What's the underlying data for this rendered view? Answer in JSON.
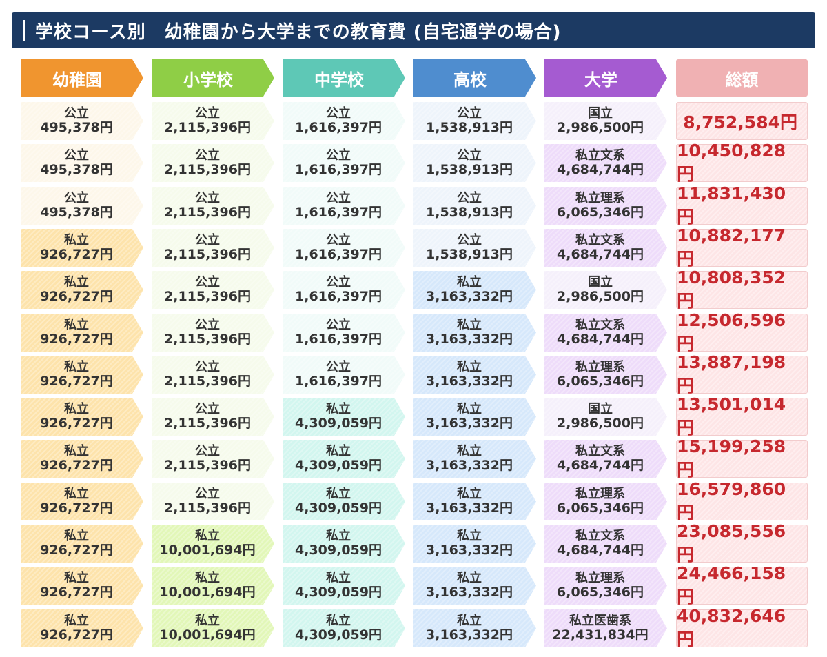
{
  "title": "学校コース別　幼稚園から大学までの教育費 (自宅通学の場合)",
  "headers": [
    "幼稚園",
    "小学校",
    "中学校",
    "高校",
    "大学",
    "総額"
  ],
  "colors": {
    "title_bg": "#1c3a63",
    "header": [
      "#f0952f",
      "#8fce46",
      "#5ec8b6",
      "#4f8dcf",
      "#a55bd1",
      "#f0b1b3"
    ],
    "public": [
      "#fdf7ea",
      "#f6fbec",
      "#f1fbf9",
      "#eef4fb",
      "#f5f0fb"
    ],
    "private": [
      "#fde3ab",
      "#e2f7b8",
      "#d2f6ef",
      "#d6e8fb",
      "#eedcfa"
    ],
    "total_text": "#c6282e"
  },
  "rows": [
    {
      "cells": [
        {
          "type": "公立",
          "amount": "495,378円",
          "private": false
        },
        {
          "type": "公立",
          "amount": "2,115,396円",
          "private": false
        },
        {
          "type": "公立",
          "amount": "1,616,397円",
          "private": false
        },
        {
          "type": "公立",
          "amount": "1,538,913円",
          "private": false
        },
        {
          "type": "国立",
          "amount": "2,986,500円",
          "private": false
        }
      ],
      "total": "8,752,584円"
    },
    {
      "cells": [
        {
          "type": "公立",
          "amount": "495,378円",
          "private": false
        },
        {
          "type": "公立",
          "amount": "2,115,396円",
          "private": false
        },
        {
          "type": "公立",
          "amount": "1,616,397円",
          "private": false
        },
        {
          "type": "公立",
          "amount": "1,538,913円",
          "private": false
        },
        {
          "type": "私立文系",
          "amount": "4,684,744円",
          "private": true
        }
      ],
      "total": "10,450,828円"
    },
    {
      "cells": [
        {
          "type": "公立",
          "amount": "495,378円",
          "private": false
        },
        {
          "type": "公立",
          "amount": "2,115,396円",
          "private": false
        },
        {
          "type": "公立",
          "amount": "1,616,397円",
          "private": false
        },
        {
          "type": "公立",
          "amount": "1,538,913円",
          "private": false
        },
        {
          "type": "私立理系",
          "amount": "6,065,346円",
          "private": true
        }
      ],
      "total": "11,831,430円"
    },
    {
      "cells": [
        {
          "type": "私立",
          "amount": "926,727円",
          "private": true
        },
        {
          "type": "公立",
          "amount": "2,115,396円",
          "private": false
        },
        {
          "type": "公立",
          "amount": "1,616,397円",
          "private": false
        },
        {
          "type": "公立",
          "amount": "1,538,913円",
          "private": false
        },
        {
          "type": "私立文系",
          "amount": "4,684,744円",
          "private": true
        }
      ],
      "total": "10,882,177円"
    },
    {
      "cells": [
        {
          "type": "私立",
          "amount": "926,727円",
          "private": true
        },
        {
          "type": "公立",
          "amount": "2,115,396円",
          "private": false
        },
        {
          "type": "公立",
          "amount": "1,616,397円",
          "private": false
        },
        {
          "type": "私立",
          "amount": "3,163,332円",
          "private": true
        },
        {
          "type": "国立",
          "amount": "2,986,500円",
          "private": false
        }
      ],
      "total": "10,808,352円"
    },
    {
      "cells": [
        {
          "type": "私立",
          "amount": "926,727円",
          "private": true
        },
        {
          "type": "公立",
          "amount": "2,115,396円",
          "private": false
        },
        {
          "type": "公立",
          "amount": "1,616,397円",
          "private": false
        },
        {
          "type": "私立",
          "amount": "3,163,332円",
          "private": true
        },
        {
          "type": "私立文系",
          "amount": "4,684,744円",
          "private": true
        }
      ],
      "total": "12,506,596円"
    },
    {
      "cells": [
        {
          "type": "私立",
          "amount": "926,727円",
          "private": true
        },
        {
          "type": "公立",
          "amount": "2,115,396円",
          "private": false
        },
        {
          "type": "公立",
          "amount": "1,616,397円",
          "private": false
        },
        {
          "type": "私立",
          "amount": "3,163,332円",
          "private": true
        },
        {
          "type": "私立理系",
          "amount": "6,065,346円",
          "private": true
        }
      ],
      "total": "13,887,198円"
    },
    {
      "cells": [
        {
          "type": "私立",
          "amount": "926,727円",
          "private": true
        },
        {
          "type": "公立",
          "amount": "2,115,396円",
          "private": false
        },
        {
          "type": "私立",
          "amount": "4,309,059円",
          "private": true
        },
        {
          "type": "私立",
          "amount": "3,163,332円",
          "private": true
        },
        {
          "type": "国立",
          "amount": "2,986,500円",
          "private": false
        }
      ],
      "total": "13,501,014円"
    },
    {
      "cells": [
        {
          "type": "私立",
          "amount": "926,727円",
          "private": true
        },
        {
          "type": "公立",
          "amount": "2,115,396円",
          "private": false
        },
        {
          "type": "私立",
          "amount": "4,309,059円",
          "private": true
        },
        {
          "type": "私立",
          "amount": "3,163,332円",
          "private": true
        },
        {
          "type": "私立文系",
          "amount": "4,684,744円",
          "private": true
        }
      ],
      "total": "15,199,258円"
    },
    {
      "cells": [
        {
          "type": "私立",
          "amount": "926,727円",
          "private": true
        },
        {
          "type": "公立",
          "amount": "2,115,396円",
          "private": false
        },
        {
          "type": "私立",
          "amount": "4,309,059円",
          "private": true
        },
        {
          "type": "私立",
          "amount": "3,163,332円",
          "private": true
        },
        {
          "type": "私立理系",
          "amount": "6,065,346円",
          "private": true
        }
      ],
      "total": "16,579,860円"
    },
    {
      "cells": [
        {
          "type": "私立",
          "amount": "926,727円",
          "private": true
        },
        {
          "type": "私立",
          "amount": "10,001,694円",
          "private": true
        },
        {
          "type": "私立",
          "amount": "4,309,059円",
          "private": true
        },
        {
          "type": "私立",
          "amount": "3,163,332円",
          "private": true
        },
        {
          "type": "私立文系",
          "amount": "4,684,744円",
          "private": true
        }
      ],
      "total": "23,085,556円"
    },
    {
      "cells": [
        {
          "type": "私立",
          "amount": "926,727円",
          "private": true
        },
        {
          "type": "私立",
          "amount": "10,001,694円",
          "private": true
        },
        {
          "type": "私立",
          "amount": "4,309,059円",
          "private": true
        },
        {
          "type": "私立",
          "amount": "3,163,332円",
          "private": true
        },
        {
          "type": "私立理系",
          "amount": "6,065,346円",
          "private": true
        }
      ],
      "total": "24,466,158円"
    },
    {
      "cells": [
        {
          "type": "私立",
          "amount": "926,727円",
          "private": true
        },
        {
          "type": "私立",
          "amount": "10,001,694円",
          "private": true
        },
        {
          "type": "私立",
          "amount": "4,309,059円",
          "private": true
        },
        {
          "type": "私立",
          "amount": "3,163,332円",
          "private": true
        },
        {
          "type": "私立医歯系",
          "amount": "22,431,834円",
          "private": true
        }
      ],
      "total": "40,832,646円"
    }
  ]
}
